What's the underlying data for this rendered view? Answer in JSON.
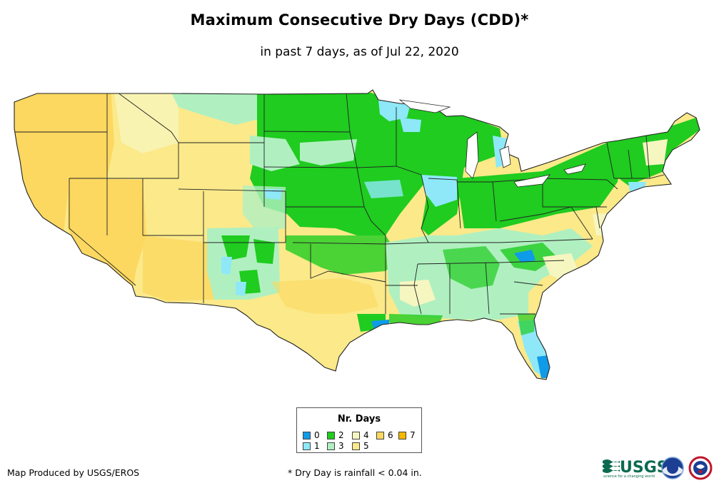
{
  "title": "Maximum Consecutive Dry Days (CDD)*",
  "subtitle": "in past 7 days, as of Jul 22, 2020",
  "legend": {
    "title": "Nr. Days",
    "items": [
      {
        "label": "0",
        "color": "#0f9be8"
      },
      {
        "label": "1",
        "color": "#8ee8f8"
      },
      {
        "label": "2",
        "color": "#1fcc1f"
      },
      {
        "label": "3",
        "color": "#b0f0c0"
      },
      {
        "label": "4",
        "color": "#f6f6c0"
      },
      {
        "label": "5",
        "color": "#fbe98a"
      },
      {
        "label": "6",
        "color": "#fcd860"
      },
      {
        "label": "7",
        "color": "#f5b800"
      }
    ]
  },
  "footer": {
    "credit": "Map Produced by USGS/EROS",
    "note": "* Dry Day is rainfall < 0.04 in."
  },
  "logos": {
    "usgs_text": "USGS",
    "usgs_tagline": "science for a changing world"
  }
}
